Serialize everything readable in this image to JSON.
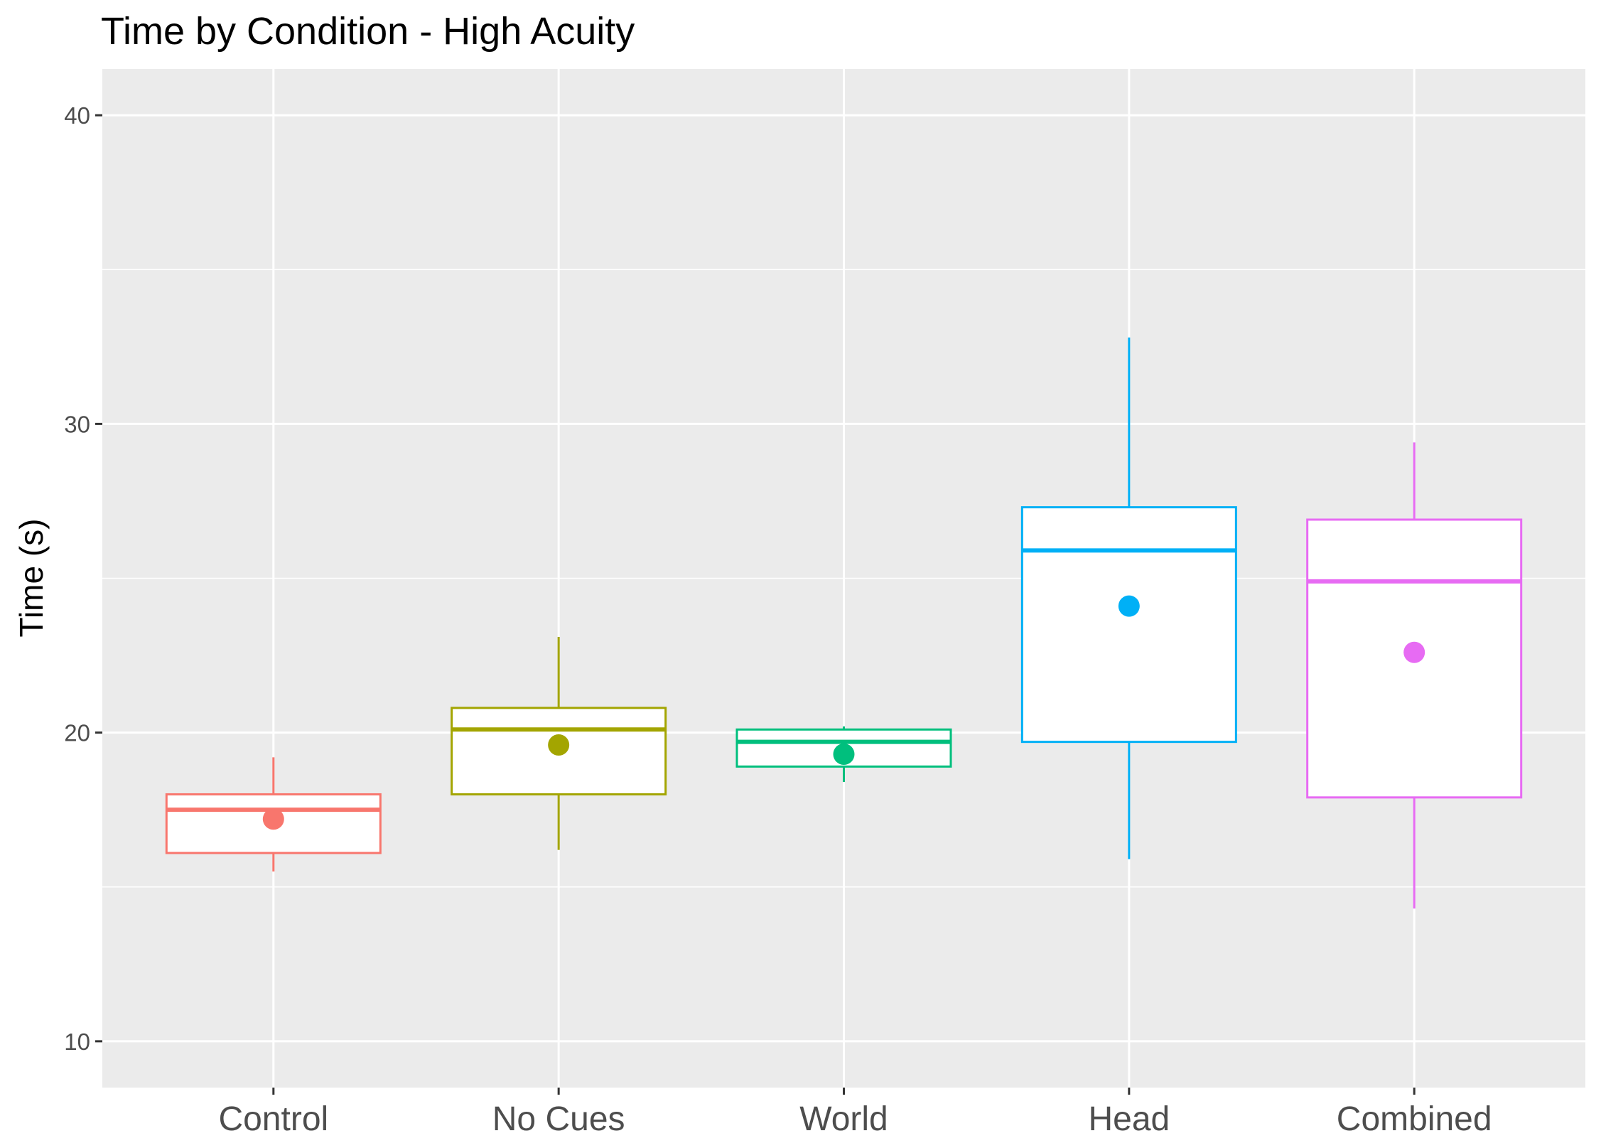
{
  "chart_data": {
    "type": "box",
    "title": "Time by Condition - High Acuity",
    "xlabel": "",
    "ylabel": "Time (s)",
    "ylim": [
      8.5,
      41.5
    ],
    "yticks": [
      10,
      20,
      30,
      40
    ],
    "ytick_labels": [
      "10",
      "20",
      "30",
      "40"
    ],
    "y_minor_grid": [
      15,
      25,
      35
    ],
    "grid": true,
    "legend": "none",
    "categories": [
      "Control",
      "No Cues",
      "World",
      "Head",
      "Combined"
    ],
    "boxes": [
      {
        "category": "Control",
        "color": "#F8766D",
        "whisker_low": 15.5,
        "q1": 16.1,
        "median": 17.5,
        "q3": 18.0,
        "whisker_high": 19.2,
        "mean": 17.2
      },
      {
        "category": "No Cues",
        "color": "#A3A500",
        "whisker_low": 16.2,
        "q1": 18.0,
        "median": 20.1,
        "q3": 20.8,
        "whisker_high": 23.1,
        "mean": 19.6
      },
      {
        "category": "World",
        "color": "#00BF7D",
        "whisker_low": 18.4,
        "q1": 18.9,
        "median": 19.7,
        "q3": 20.1,
        "whisker_high": 20.2,
        "mean": 19.3
      },
      {
        "category": "Head",
        "color": "#00B0F6",
        "whisker_low": 15.9,
        "q1": 19.7,
        "median": 25.9,
        "q3": 27.3,
        "whisker_high": 32.8,
        "mean": 24.1
      },
      {
        "category": "Combined",
        "color": "#E76BF3",
        "whisker_low": 14.3,
        "q1": 17.9,
        "median": 24.9,
        "q3": 26.9,
        "whisker_high": 29.4,
        "mean": 22.6
      }
    ],
    "colors": {
      "panel_background": "#EBEBEB",
      "grid": "#FFFFFF",
      "box_fill": "#FFFFFF",
      "tick_mark": "#333333"
    }
  }
}
